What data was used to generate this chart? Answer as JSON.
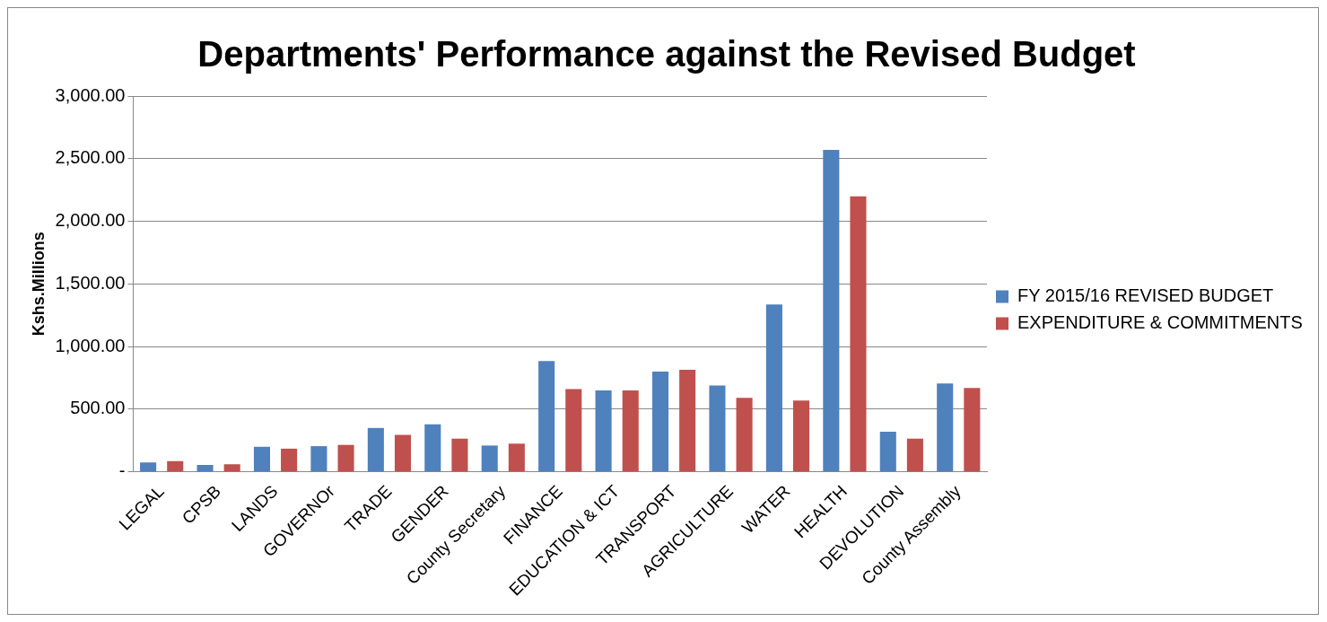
{
  "chart_data": {
    "type": "bar",
    "title": "Departments' Performance against the Revised Budget",
    "ylabel": "Kshs.Millions",
    "categories": [
      "LEGAL",
      "CPSB",
      "LANDS",
      "GOVERNOr",
      "TRADE",
      "GENDER",
      "County Secretary",
      "FINANCE",
      "EDUCATION & ICT",
      "TRANSPORT",
      "AGRICULTURE",
      "WATER",
      "HEALTH",
      "DEVOLUTION",
      "County Assembly"
    ],
    "series": [
      {
        "name": "FY 2015/16 REVISED BUDGET",
        "color": "#4f81bd",
        "values": [
          75,
          55,
          200,
          205,
          350,
          380,
          210,
          885,
          650,
          800,
          690,
          1335,
          2570,
          320,
          705
        ]
      },
      {
        "name": "EXPENDITURE & COMMITMENTS",
        "color": "#c0504d",
        "values": [
          85,
          60,
          185,
          215,
          295,
          265,
          225,
          660,
          650,
          815,
          590,
          570,
          2200,
          265,
          670
        ]
      }
    ],
    "ylim": [
      0,
      3000
    ],
    "yticks": [
      {
        "value": 0,
        "label": "-"
      },
      {
        "value": 500,
        "label": "500.00"
      },
      {
        "value": 1000,
        "label": "1,000.00"
      },
      {
        "value": 1500,
        "label": "1,500.00"
      },
      {
        "value": 2000,
        "label": "2,000.00"
      },
      {
        "value": 2500,
        "label": "2,500.00"
      },
      {
        "value": 3000,
        "label": "3,000.00"
      }
    ],
    "grid": "y",
    "legend": "right"
  }
}
